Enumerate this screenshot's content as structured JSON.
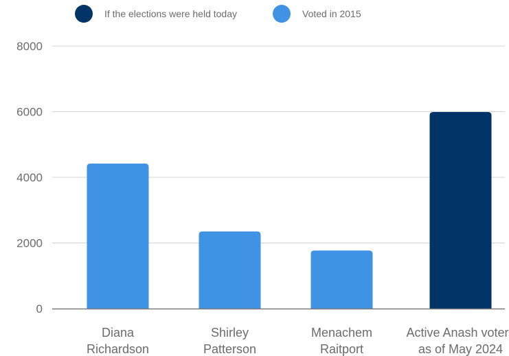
{
  "chart_data": {
    "type": "bar",
    "title": "",
    "xlabel": "",
    "ylabel": "",
    "ylim": [
      0,
      8000
    ],
    "yticks": [
      0,
      2000,
      4000,
      6000,
      8000
    ],
    "grid": true,
    "legend_position": "top-left",
    "legend": [
      {
        "name": "If the elections were held today",
        "color": "#003366"
      },
      {
        "name": "Voted in 2015",
        "color": "#3f92e4"
      }
    ],
    "categories": [
      [
        "Diana",
        "Richardson"
      ],
      [
        "Shirley",
        "Patterson"
      ],
      [
        "Menachem",
        "Raitport"
      ],
      [
        "Active Anash voters",
        "as of May 2024"
      ]
    ],
    "values": [
      4420,
      2350,
      1770,
      5990
    ],
    "series_index": [
      1,
      1,
      1,
      0
    ]
  }
}
